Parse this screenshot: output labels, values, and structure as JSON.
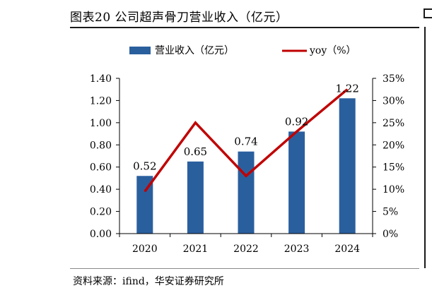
{
  "figure": {
    "title": "图表20 公司超声骨刀营业收入（亿元）",
    "source": "资料来源：ifind，华安证券研究所"
  },
  "colors": {
    "bar": "#2a5f9e",
    "line": "#c00000",
    "axis": "#000000",
    "text": "#000000"
  },
  "chart_data": {
    "type": "bar",
    "title": "公司超声骨刀营业收入（亿元）",
    "categories": [
      "2020",
      "2021",
      "2022",
      "2023",
      "2024"
    ],
    "series": [
      {
        "name": "营业收入（亿元）",
        "type": "bar",
        "axis": "left",
        "values": [
          0.52,
          0.65,
          0.74,
          0.92,
          1.22
        ],
        "data_labels": [
          "0.52",
          "0.65",
          "0.74",
          "0.92",
          "1.22"
        ]
      },
      {
        "name": "yoy（%）",
        "type": "line",
        "axis": "right",
        "values": [
          9.5,
          25.0,
          13.0,
          23.0,
          32.5
        ]
      }
    ],
    "y_left": {
      "ylim": [
        0,
        1.4
      ],
      "ticks": [
        0,
        0.2,
        0.4,
        0.6,
        0.8,
        1.0,
        1.2,
        1.4
      ],
      "tick_labels": [
        "0.00",
        "0.20",
        "0.40",
        "0.60",
        "0.80",
        "1.00",
        "1.20",
        "1.40"
      ]
    },
    "y_right": {
      "ylim": [
        0,
        35
      ],
      "ticks": [
        0,
        5,
        10,
        15,
        20,
        25,
        30,
        35
      ],
      "tick_labels": [
        "0%",
        "5%",
        "10%",
        "15%",
        "20%",
        "25%",
        "30%",
        "35%"
      ]
    },
    "xlabel": "",
    "ylabel": "",
    "legend": {
      "position": "top",
      "entries": [
        "营业收入（亿元）",
        "yoy（%）"
      ]
    },
    "grid": false
  }
}
